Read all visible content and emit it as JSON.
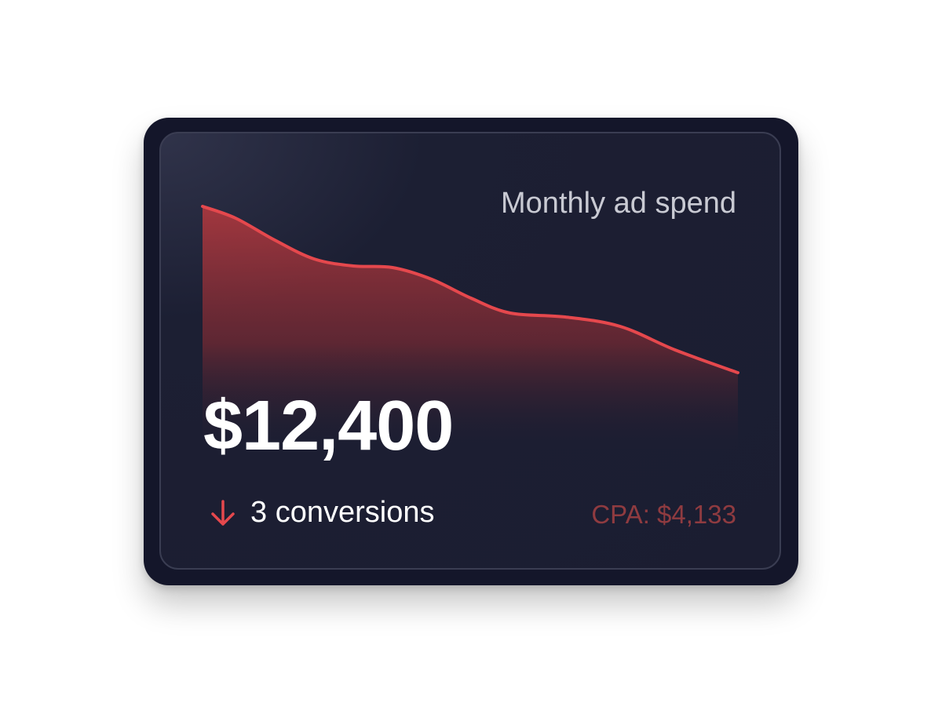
{
  "widget": {
    "title": "Monthly ad spend",
    "value": "$12,400",
    "trend_direction": "down",
    "trend_icon": "arrow-down-icon",
    "conversions_label": "3 conversions",
    "cpa_label": "CPA: $4,133"
  },
  "colors": {
    "accent": "#e5484d",
    "card_bg": "#14162a",
    "panel_bg": "#1b1d31",
    "cpa_text": "#8f3b40"
  }
}
